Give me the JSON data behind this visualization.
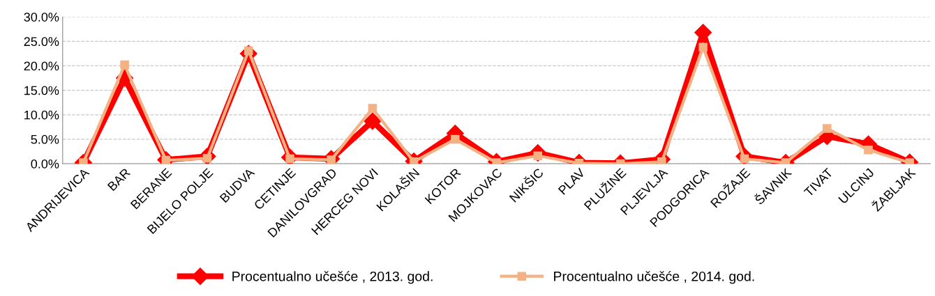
{
  "chart_data": {
    "type": "line",
    "categories": [
      "ANDRIJEVICA",
      "BAR",
      "BERANE",
      "BIJELO POLJE",
      "BUDVA",
      "CETINJE",
      "DANILOVGRAD",
      "HERCEG NOVI",
      "KOLAŠIN",
      "KOTOR",
      "MOJKOVAC",
      "NIKŠIC",
      "PLAV",
      "PLUŽINE",
      "PLJEVLJA",
      "PODGORICA",
      "ROŽAJE",
      "ŠAVNIK",
      "TIVAT",
      "ULCINJ",
      "ŽABLJAK"
    ],
    "series": [
      {
        "name": "Procentualno učešće , 2013. god.",
        "color": "#ff0000",
        "marker": "diamond",
        "values": [
          0.2,
          17.5,
          0.8,
          1.5,
          22.5,
          1.3,
          1.0,
          8.7,
          0.5,
          6.2,
          0.4,
          2.2,
          0.2,
          0.1,
          0.9,
          26.8,
          1.5,
          0.2,
          5.6,
          4.0,
          0.3
        ]
      },
      {
        "name": "Procentualno učešće , 2014. god.",
        "color": "#f4b183",
        "marker": "square",
        "values": [
          0.2,
          20.2,
          0.7,
          1.1,
          23.1,
          1.0,
          0.8,
          11.3,
          0.4,
          5.0,
          0.2,
          1.6,
          0.1,
          0.0,
          0.4,
          23.8,
          1.0,
          0.2,
          7.2,
          2.8,
          0.2
        ]
      }
    ],
    "ylim": [
      0,
      30
    ],
    "yticks": [
      {
        "value": 0,
        "label": "0.0%"
      },
      {
        "value": 5,
        "label": "5.0%"
      },
      {
        "value": 10,
        "label": "10.0%"
      },
      {
        "value": 15,
        "label": "15.0%"
      },
      {
        "value": 20,
        "label": "20.0%"
      },
      {
        "value": 25,
        "label": "25.0%"
      },
      {
        "value": 30,
        "label": "30.0%"
      }
    ],
    "grid": "y",
    "legend": "bottom",
    "line_style": "solid"
  }
}
